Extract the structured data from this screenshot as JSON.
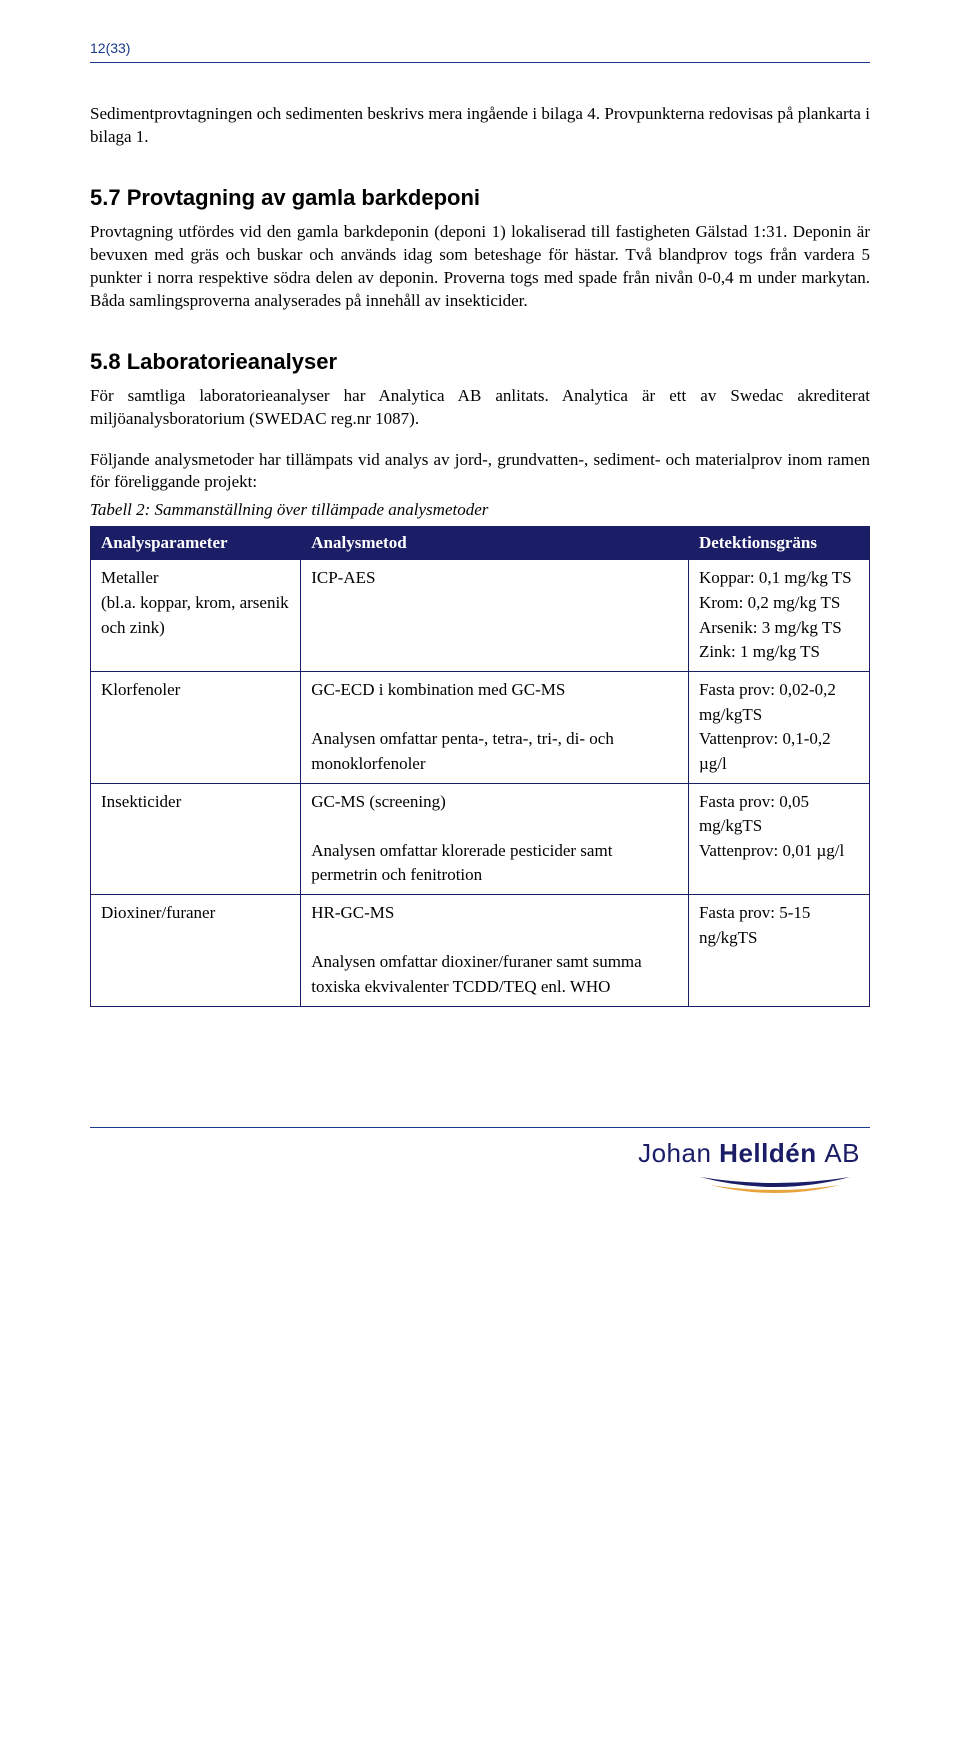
{
  "pageNumber": "12(33)",
  "intro": "Sedimentprovtagningen och sedimenten beskrivs mera ingående i bilaga 4. Provpunkterna redovisas på plankarta i bilaga 1.",
  "section57": {
    "heading": "5.7 Provtagning av gamla barkdeponi",
    "para": "Provtagning utfördes vid den gamla barkdeponin (deponi 1) lokaliserad till fastigheten Gälstad 1:31. Deponin är bevuxen med gräs och buskar och används idag som beteshage för hästar. Två blandprov togs från vardera 5 punkter i norra respektive södra delen av deponin. Proverna togs med spade från nivån 0-0,4 m under markytan. Båda samlingsproverna analyserades på innehåll av insekticider."
  },
  "section58": {
    "heading": "5.8 Laboratorieanalyser",
    "para1": "För samtliga laboratorieanalyser har Analytica AB anlitats. Analytica är ett av Swedac akrediterat miljöanalysboratorium (SWEDAC reg.nr 1087).",
    "para2": "Följande analysmetoder har tillämpats vid analys av jord-, grundvatten-, sediment- och materialprov inom ramen för föreliggande projekt:",
    "tableCaption": "Tabell 2: Sammanställning över tillämpade analysmetoder"
  },
  "table": {
    "headers": [
      "Analysparameter",
      "Analysmetod",
      "Detektionsgräns"
    ],
    "rows": [
      {
        "param": "Metaller\n(bl.a. koppar, krom, arsenik och zink)",
        "method": "ICP-AES",
        "limit": "Koppar: 0,1 mg/kg TS\nKrom: 0,2 mg/kg TS\nArsenik: 3 mg/kg TS\nZink: 1 mg/kg TS"
      },
      {
        "param": "Klorfenoler",
        "method": "GC-ECD i kombination med GC-MS\nAnalysen omfattar penta-, tetra-, tri-, di- och monoklorfenoler",
        "limit": "Fasta prov: 0,02-0,2 mg/kgTS\nVattenprov: 0,1-0,2 µg/l"
      },
      {
        "param": "Insekticider",
        "method": "GC-MS (screening)\nAnalysen omfattar klorerade pesticider samt permetrin och fenitrotion",
        "limit": "Fasta prov: 0,05 mg/kgTS\nVattenprov: 0,01 µg/l"
      },
      {
        "param": "Dioxiner/furaner",
        "method": "HR-GC-MS\nAnalysen omfattar dioxiner/furaner samt summa toxiska ekvivalenter TCDD/TEQ enl. WHO",
        "limit": "Fasta prov: 5-15 ng/kgTS"
      }
    ]
  },
  "logo": {
    "name1": "Johan ",
    "name2": "Helldén ",
    "suffix": "AB"
  },
  "colors": {
    "headerBg": "#1b1e66",
    "headerText": "#ffffff",
    "border": "#1b1e66",
    "accent": "#1a3a8a"
  }
}
